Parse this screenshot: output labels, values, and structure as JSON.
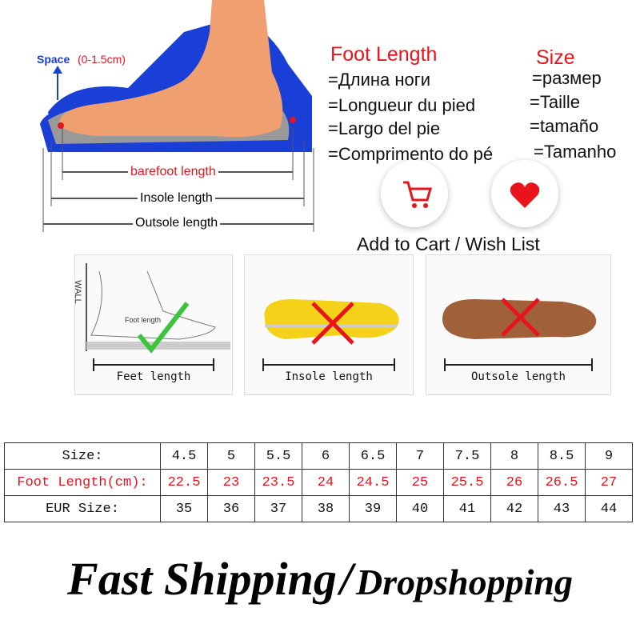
{
  "diagram": {
    "space_label": "Space",
    "space_range": "(0-1.5cm)",
    "barefoot_length": "barefoot length",
    "insole_length": "Insole length",
    "outsole_length": "Outsole length"
  },
  "foot_length": {
    "title": "Foot Length",
    "translations": [
      "=Длина ноги",
      "=Longueur du pied",
      "=Largo del pie",
      "=Comprimento do pé"
    ]
  },
  "size": {
    "title": "Size",
    "translations": [
      "=размер",
      "=Taille",
      "=tamaño",
      "=Tamanho"
    ]
  },
  "actions": {
    "caption": "Add to Cart / Wish List",
    "cart_icon": "shopping-cart-icon",
    "wish_icon": "heart-icon"
  },
  "panels": {
    "wall_label": "WALL",
    "foot_length_label": "Foot length",
    "feet_length": "Feet length",
    "insole_length": "Insole length",
    "outsole_length": "Outsole length"
  },
  "table": {
    "rows": [
      {
        "label": "Size:",
        "values": [
          "4.5",
          "5",
          "5.5",
          "6",
          "6.5",
          "7",
          "7.5",
          "8",
          "8.5",
          "9"
        ]
      },
      {
        "label": "Foot Length(cm):",
        "values": [
          "22.5",
          "23",
          "23.5",
          "24",
          "24.5",
          "25",
          "25.5",
          "26",
          "26.5",
          "27"
        ]
      },
      {
        "label": "EUR Size:",
        "values": [
          "35",
          "36",
          "37",
          "38",
          "39",
          "40",
          "41",
          "42",
          "43",
          "44"
        ]
      }
    ]
  },
  "banner": {
    "left": "Fast Shipping",
    "sep": "/",
    "right": "Dropshopping"
  },
  "colors": {
    "accent_red": "#e8141b",
    "blue": "#1a3fd6",
    "foot": "#f0a070"
  }
}
